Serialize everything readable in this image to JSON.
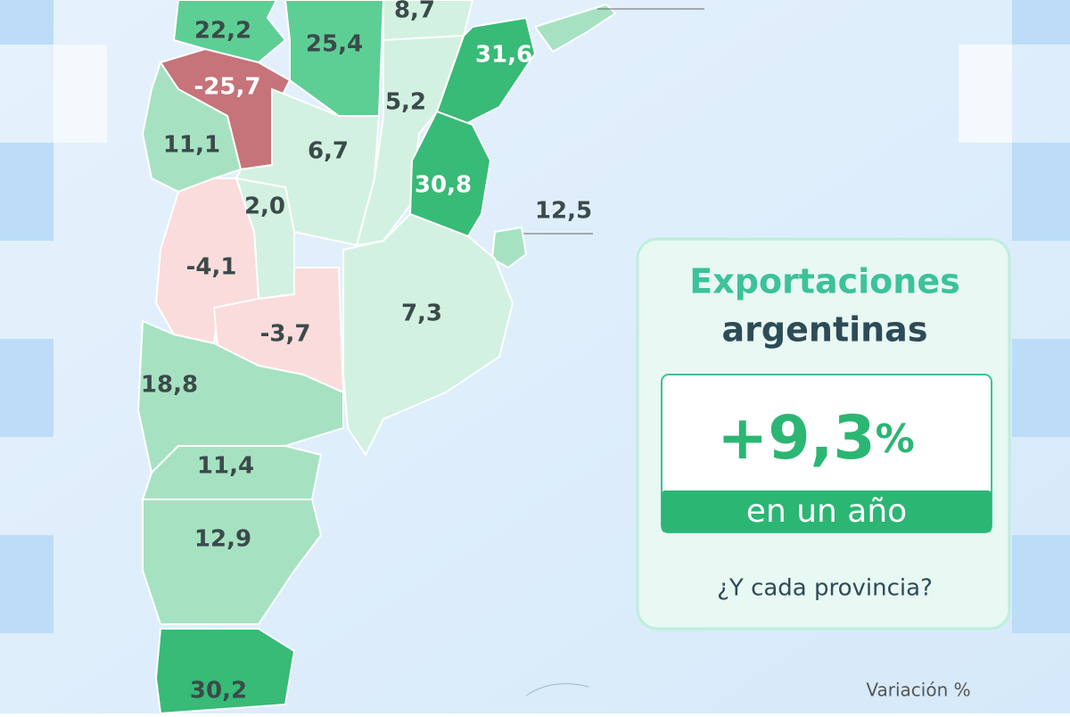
{
  "header": {
    "title_line1": "Exportaciones",
    "title_line2": "argentinas",
    "total": "+9,3",
    "total_unit": "%",
    "period": "en un año",
    "question": "¿Y cada provincia?",
    "legend_title": "Variación %"
  },
  "provinces": [
    {
      "label": "22,2",
      "color": "#5dcf95",
      "text_color": "#3b4a4a"
    },
    {
      "label": "25,4",
      "color": "#5dcf95",
      "text_color": "#3b4a4a"
    },
    {
      "label": "8,7",
      "color": "#d3f1e0",
      "text_color": "#3b4a4a"
    },
    {
      "label": "31,6",
      "color": "#37bb76",
      "text_color": "#ffffff"
    },
    {
      "label": "-25,7",
      "color": "#c6737a",
      "text_color": "#ffffff"
    },
    {
      "label": "5,2",
      "color": "#d3f1e0",
      "text_color": "#3b4a4a"
    },
    {
      "label": "11,1",
      "color": "#a6e2c2",
      "text_color": "#3b4a4a"
    },
    {
      "label": "6,7",
      "color": "#d3f1e0",
      "text_color": "#3b4a4a"
    },
    {
      "label": "30,8",
      "color": "#37bb76",
      "text_color": "#ffffff"
    },
    {
      "label": "12,5",
      "color": "#a6e2c2",
      "text_color": "#3b4a4a"
    },
    {
      "label": "2,0",
      "color": "#d3f1e0",
      "text_color": "#3b4a4a"
    },
    {
      "label": "-4,1",
      "color": "#fbdcdc",
      "text_color": "#3b4a4a"
    },
    {
      "label": "7,3",
      "color": "#d3f1e0",
      "text_color": "#3b4a4a"
    },
    {
      "label": "-3,7",
      "color": "#fbdcdc",
      "text_color": "#3b4a4a"
    },
    {
      "label": "18,8",
      "color": "#a6e2c2",
      "text_color": "#3b4a4a"
    },
    {
      "label": "11,4",
      "color": "#a6e2c2",
      "text_color": "#3b4a4a"
    },
    {
      "label": "12,9",
      "color": "#a6e2c2",
      "text_color": "#3b4a4a"
    },
    {
      "label": "30,2",
      "color": "#37bb76",
      "text_color": "#3b4a4a"
    }
  ]
}
